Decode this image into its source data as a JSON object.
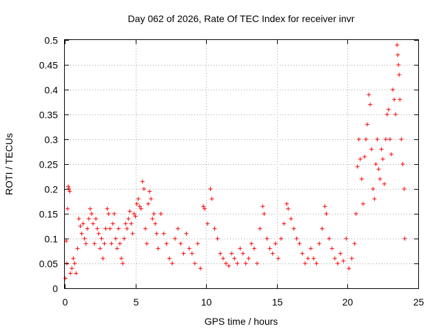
{
  "chart_data": {
    "type": "scatter",
    "title": "Day 062 of 2026, Rate Of TEC Index for receiver invr",
    "xlabel": "GPS time / hours",
    "ylabel": "ROTI / TECUs",
    "xlim": [
      0,
      25
    ],
    "ylim": [
      0,
      0.5
    ],
    "xticks": [
      0,
      5,
      10,
      15,
      20,
      25
    ],
    "yticks": [
      0,
      0.05,
      0.1,
      0.15,
      0.2,
      0.25,
      0.3,
      0.35,
      0.4,
      0.45,
      0.5
    ],
    "grid": true,
    "marker": "+",
    "color": "#ff0000",
    "series": [
      {
        "name": "ROTI",
        "points": [
          [
            0.05,
            0.02
          ],
          [
            0.1,
            0.095
          ],
          [
            0.15,
            0.05
          ],
          [
            0.2,
            0.16
          ],
          [
            0.25,
            0.205
          ],
          [
            0.3,
            0.2
          ],
          [
            0.35,
            0.195
          ],
          [
            0.4,
            0.03
          ],
          [
            0.5,
            0.04
          ],
          [
            0.6,
            0.06
          ],
          [
            0.7,
            0.05
          ],
          [
            0.8,
            0.03
          ],
          [
            0.9,
            0.08
          ],
          [
            1.0,
            0.14
          ],
          [
            1.1,
            0.125
          ],
          [
            1.2,
            0.11
          ],
          [
            1.3,
            0.13
          ],
          [
            1.4,
            0.1
          ],
          [
            1.5,
            0.09
          ],
          [
            1.6,
            0.12
          ],
          [
            1.7,
            0.14
          ],
          [
            1.8,
            0.16
          ],
          [
            1.9,
            0.15
          ],
          [
            2.0,
            0.13
          ],
          [
            2.1,
            0.09
          ],
          [
            2.2,
            0.14
          ],
          [
            2.3,
            0.12
          ],
          [
            2.4,
            0.11
          ],
          [
            2.5,
            0.08
          ],
          [
            2.6,
            0.1
          ],
          [
            2.7,
            0.06
          ],
          [
            2.8,
            0.09
          ],
          [
            2.9,
            0.12
          ],
          [
            3.0,
            0.16
          ],
          [
            3.1,
            0.15
          ],
          [
            3.2,
            0.12
          ],
          [
            3.3,
            0.09
          ],
          [
            3.4,
            0.13
          ],
          [
            3.5,
            0.15
          ],
          [
            3.6,
            0.1
          ],
          [
            3.7,
            0.08
          ],
          [
            3.8,
            0.12
          ],
          [
            3.9,
            0.09
          ],
          [
            4.0,
            0.06
          ],
          [
            4.1,
            0.05
          ],
          [
            4.2,
            0.1
          ],
          [
            4.3,
            0.13
          ],
          [
            4.4,
            0.12
          ],
          [
            4.5,
            0.14
          ],
          [
            4.6,
            0.155
          ],
          [
            4.7,
            0.13
          ],
          [
            4.8,
            0.11
          ],
          [
            4.9,
            0.15
          ],
          [
            5.0,
            0.145
          ],
          [
            5.1,
            0.17
          ],
          [
            5.2,
            0.18
          ],
          [
            5.3,
            0.165
          ],
          [
            5.4,
            0.16
          ],
          [
            5.5,
            0.215
          ],
          [
            5.6,
            0.2
          ],
          [
            5.7,
            0.12
          ],
          [
            5.8,
            0.09
          ],
          [
            5.9,
            0.17
          ],
          [
            6.0,
            0.195
          ],
          [
            6.1,
            0.18
          ],
          [
            6.2,
            0.14
          ],
          [
            6.3,
            0.15
          ],
          [
            6.4,
            0.13
          ],
          [
            6.5,
            0.11
          ],
          [
            6.6,
            0.08
          ],
          [
            6.8,
            0.15
          ],
          [
            7.0,
            0.11
          ],
          [
            7.2,
            0.09
          ],
          [
            7.4,
            0.06
          ],
          [
            7.6,
            0.05
          ],
          [
            7.8,
            0.1
          ],
          [
            8.0,
            0.12
          ],
          [
            8.2,
            0.09
          ],
          [
            8.4,
            0.07
          ],
          [
            8.6,
            0.11
          ],
          [
            8.8,
            0.08
          ],
          [
            9.0,
            0.07
          ],
          [
            9.2,
            0.05
          ],
          [
            9.4,
            0.09
          ],
          [
            9.6,
            0.04
          ],
          [
            9.8,
            0.165
          ],
          [
            9.9,
            0.16
          ],
          [
            10.1,
            0.13
          ],
          [
            10.3,
            0.2
          ],
          [
            10.4,
            0.18
          ],
          [
            10.6,
            0.12
          ],
          [
            10.8,
            0.1
          ],
          [
            11.0,
            0.07
          ],
          [
            11.2,
            0.06
          ],
          [
            11.4,
            0.05
          ],
          [
            11.6,
            0.045
          ],
          [
            11.8,
            0.07
          ],
          [
            12.0,
            0.06
          ],
          [
            12.2,
            0.05
          ],
          [
            12.4,
            0.08
          ],
          [
            12.6,
            0.07
          ],
          [
            12.8,
            0.05
          ],
          [
            13.0,
            0.06
          ],
          [
            13.2,
            0.09
          ],
          [
            13.4,
            0.08
          ],
          [
            13.6,
            0.05
          ],
          [
            13.8,
            0.12
          ],
          [
            14.0,
            0.165
          ],
          [
            14.1,
            0.15
          ],
          [
            14.3,
            0.1
          ],
          [
            14.5,
            0.08
          ],
          [
            14.7,
            0.07
          ],
          [
            14.9,
            0.09
          ],
          [
            15.1,
            0.06
          ],
          [
            15.3,
            0.1
          ],
          [
            15.5,
            0.13
          ],
          [
            15.7,
            0.17
          ],
          [
            15.8,
            0.16
          ],
          [
            16.0,
            0.14
          ],
          [
            16.2,
            0.12
          ],
          [
            16.4,
            0.1
          ],
          [
            16.6,
            0.09
          ],
          [
            16.8,
            0.07
          ],
          [
            17.0,
            0.05
          ],
          [
            17.2,
            0.06
          ],
          [
            17.4,
            0.08
          ],
          [
            17.6,
            0.06
          ],
          [
            17.8,
            0.05
          ],
          [
            18.0,
            0.09
          ],
          [
            18.2,
            0.12
          ],
          [
            18.4,
            0.165
          ],
          [
            18.5,
            0.15
          ],
          [
            18.7,
            0.1
          ],
          [
            18.9,
            0.08
          ],
          [
            19.1,
            0.06
          ],
          [
            19.3,
            0.05
          ],
          [
            19.5,
            0.07
          ],
          [
            19.7,
            0.055
          ],
          [
            19.9,
            0.1
          ],
          [
            20.1,
            0.04
          ],
          [
            20.3,
            0.06
          ],
          [
            20.5,
            0.09
          ],
          [
            20.6,
            0.15
          ],
          [
            20.7,
            0.245
          ],
          [
            20.8,
            0.3
          ],
          [
            20.9,
            0.26
          ],
          [
            21.0,
            0.22
          ],
          [
            21.1,
            0.17
          ],
          [
            21.2,
            0.265
          ],
          [
            21.3,
            0.3
          ],
          [
            21.4,
            0.33
          ],
          [
            21.5,
            0.39
          ],
          [
            21.6,
            0.37
          ],
          [
            21.7,
            0.28
          ],
          [
            21.8,
            0.2
          ],
          [
            21.9,
            0.18
          ],
          [
            22.0,
            0.25
          ],
          [
            22.1,
            0.3
          ],
          [
            22.2,
            0.24
          ],
          [
            22.3,
            0.22
          ],
          [
            22.4,
            0.28
          ],
          [
            22.5,
            0.26
          ],
          [
            22.6,
            0.21
          ],
          [
            22.7,
            0.3
          ],
          [
            22.8,
            0.35
          ],
          [
            22.9,
            0.36
          ],
          [
            23.0,
            0.3
          ],
          [
            23.1,
            0.27
          ],
          [
            23.2,
            0.4
          ],
          [
            23.3,
            0.38
          ],
          [
            23.4,
            0.35
          ],
          [
            23.5,
            0.49
          ],
          [
            23.55,
            0.47
          ],
          [
            23.6,
            0.45
          ],
          [
            23.65,
            0.43
          ],
          [
            23.7,
            0.38
          ],
          [
            23.8,
            0.3
          ],
          [
            23.9,
            0.25
          ],
          [
            24.0,
            0.2
          ],
          [
            24.05,
            0.1
          ]
        ]
      }
    ]
  }
}
